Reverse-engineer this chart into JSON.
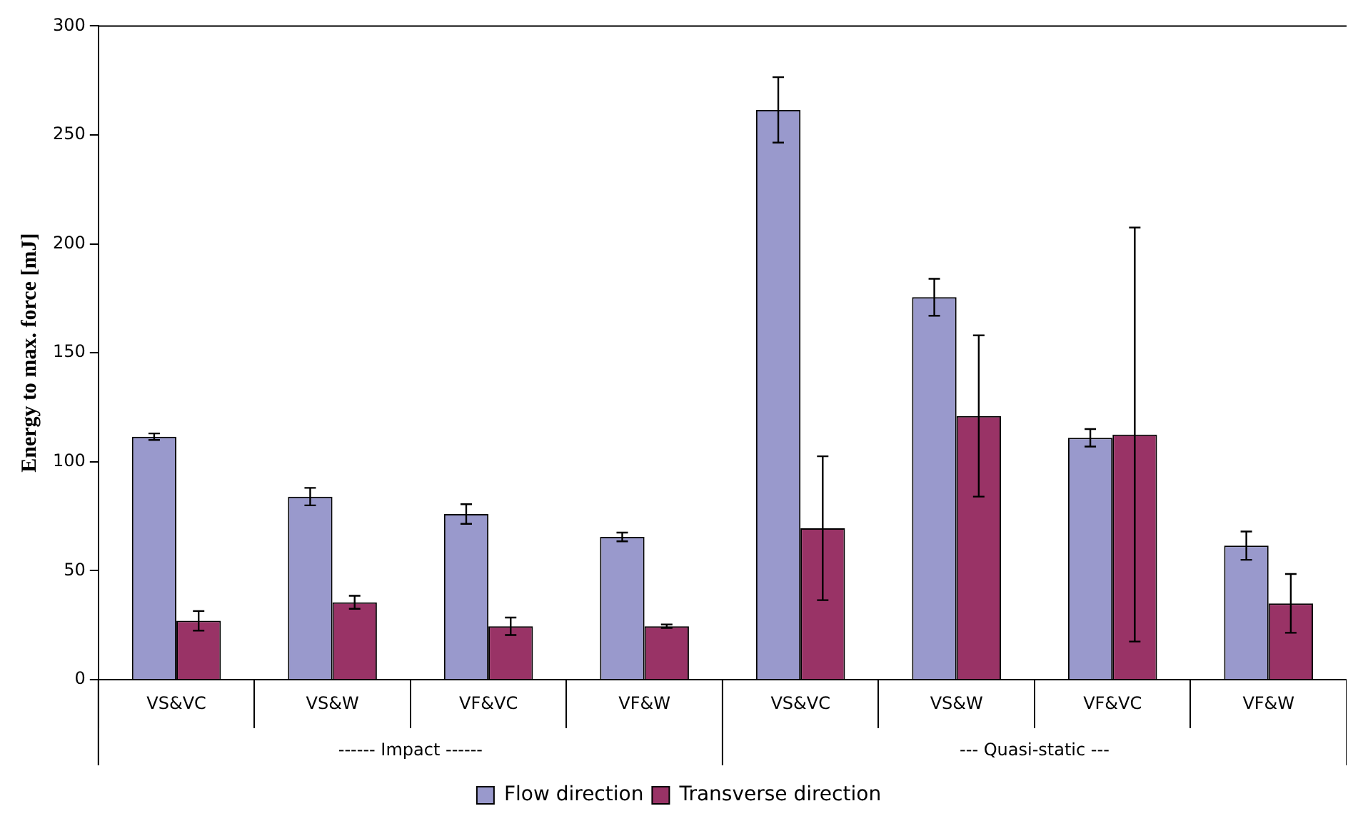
{
  "chart_data": {
    "type": "bar",
    "ylabel": "Energy to max. force [mJ]",
    "categories": [
      "VS&VC",
      "VS&W",
      "VF&VC",
      "VF&W",
      "VS&VC",
      "VS&W",
      "VF&VC",
      "VF&W"
    ],
    "series": [
      {
        "name": "Flow direction",
        "color": "#9999cc",
        "values": [
          111.5,
          84,
          76,
          65.5,
          261.5,
          175.5,
          111,
          61.5
        ],
        "errors": [
          1.5,
          4,
          4.5,
          2,
          15,
          8.5,
          4,
          6.5
        ]
      },
      {
        "name": "Transverse direction",
        "color": "#993366",
        "values": [
          27,
          35.5,
          24.5,
          24.5,
          69.5,
          121,
          112.5,
          35
        ],
        "errors": [
          4.5,
          3,
          4,
          0.8,
          33,
          37,
          95,
          13.5
        ]
      }
    ],
    "annotations": [
      "------ Impact ------",
      "--- Quasi-static ---"
    ],
    "ylim": [
      0,
      300
    ],
    "yticks": [
      0,
      50,
      100,
      150,
      200,
      250,
      300
    ],
    "grid": false,
    "legend": "bottom"
  }
}
